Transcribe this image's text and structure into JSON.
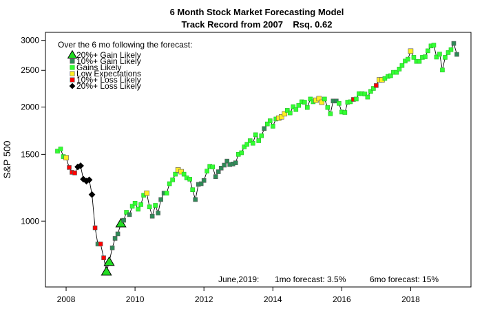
{
  "chart_data": {
    "type": "scatter",
    "title": "6 Month Stock Market Forecasting Model",
    "subtitle": "Track Record from 2007    Rsq. 0.62",
    "xlabel": "",
    "ylabel": "S&P 500",
    "y_scale": "log",
    "xlim": [
      2007.4,
      2019.75
    ],
    "ylim": [
      670,
      3150
    ],
    "x_ticks": [
      2008,
      2010,
      2012,
      2014,
      2016,
      2018
    ],
    "y_ticks": [
      1000,
      1500,
      2000,
      2500,
      3000
    ],
    "legend_title": "Over the 6 mo following the forecast:",
    "legend_position": "top-left",
    "legend": [
      {
        "key": "big-gain",
        "label": "20%+ Gain Likely",
        "color": "#22dd22",
        "shape": "triangle"
      },
      {
        "key": "gain10",
        "label": "10%+ Gain Likely",
        "color": "#2e8b57",
        "shape": "square"
      },
      {
        "key": "gain",
        "label": "Gains Likely",
        "color": "#33ff33",
        "shape": "square"
      },
      {
        "key": "low",
        "label": "Low Expectations",
        "color": "#ffee22",
        "shape": "square"
      },
      {
        "key": "loss10",
        "label": "10%+ Loss Likely",
        "color": "#ff0000",
        "shape": "square"
      },
      {
        "key": "loss20",
        "label": "20%+ Loss Likely",
        "color": "#000000",
        "shape": "diamond"
      }
    ],
    "footer": {
      "date": "June,2019:",
      "onemo": "1mo forecast: 3.5%",
      "sixmo": "6mo forecast: 15%"
    },
    "series": [
      {
        "name": "S&P 500 monthly forecasts",
        "points": [
          {
            "x": 2007.75,
            "y": 1530,
            "c": "gain"
          },
          {
            "x": 2007.84,
            "y": 1550,
            "c": "gain"
          },
          {
            "x": 2007.92,
            "y": 1480,
            "c": "gain"
          },
          {
            "x": 2008.0,
            "y": 1470,
            "c": "low"
          },
          {
            "x": 2008.09,
            "y": 1385,
            "c": "loss10"
          },
          {
            "x": 2008.17,
            "y": 1345,
            "c": "loss10"
          },
          {
            "x": 2008.25,
            "y": 1340,
            "c": "loss10"
          },
          {
            "x": 2008.34,
            "y": 1390,
            "c": "loss20"
          },
          {
            "x": 2008.42,
            "y": 1400,
            "c": "loss20"
          },
          {
            "x": 2008.5,
            "y": 1290,
            "c": "loss20"
          },
          {
            "x": 2008.59,
            "y": 1275,
            "c": "loss20"
          },
          {
            "x": 2008.67,
            "y": 1285,
            "c": "loss20"
          },
          {
            "x": 2008.75,
            "y": 1175,
            "c": "loss20"
          },
          {
            "x": 2008.84,
            "y": 960,
            "c": "loss10"
          },
          {
            "x": 2008.92,
            "y": 870,
            "c": "gain10"
          },
          {
            "x": 2009.0,
            "y": 870,
            "c": "loss10"
          },
          {
            "x": 2009.09,
            "y": 800,
            "c": "loss10"
          },
          {
            "x": 2009.17,
            "y": 735,
            "c": "big-gain"
          },
          {
            "x": 2009.25,
            "y": 780,
            "c": "big-gain"
          },
          {
            "x": 2009.34,
            "y": 850,
            "c": "gain10"
          },
          {
            "x": 2009.42,
            "y": 900,
            "c": "gain10"
          },
          {
            "x": 2009.5,
            "y": 925,
            "c": "gain10"
          },
          {
            "x": 2009.59,
            "y": 985,
            "c": "big-gain"
          },
          {
            "x": 2009.67,
            "y": 1005,
            "c": "gain10"
          },
          {
            "x": 2009.75,
            "y": 1055,
            "c": "gain"
          },
          {
            "x": 2009.84,
            "y": 1040,
            "c": "gain10"
          },
          {
            "x": 2009.92,
            "y": 1095,
            "c": "gain"
          },
          {
            "x": 2010.0,
            "y": 1115,
            "c": "gain"
          },
          {
            "x": 2010.09,
            "y": 1075,
            "c": "gain"
          },
          {
            "x": 2010.17,
            "y": 1105,
            "c": "gain"
          },
          {
            "x": 2010.25,
            "y": 1170,
            "c": "gain"
          },
          {
            "x": 2010.34,
            "y": 1185,
            "c": "low"
          },
          {
            "x": 2010.42,
            "y": 1090,
            "c": "gain"
          },
          {
            "x": 2010.5,
            "y": 1030,
            "c": "gain10"
          },
          {
            "x": 2010.59,
            "y": 1100,
            "c": "gain"
          },
          {
            "x": 2010.67,
            "y": 1050,
            "c": "gain10"
          },
          {
            "x": 2010.75,
            "y": 1140,
            "c": "gain10"
          },
          {
            "x": 2010.84,
            "y": 1185,
            "c": "gain10"
          },
          {
            "x": 2010.92,
            "y": 1185,
            "c": "gain"
          },
          {
            "x": 2011.0,
            "y": 1255,
            "c": "gain"
          },
          {
            "x": 2011.09,
            "y": 1285,
            "c": "gain"
          },
          {
            "x": 2011.17,
            "y": 1330,
            "c": "gain"
          },
          {
            "x": 2011.25,
            "y": 1365,
            "c": "low"
          },
          {
            "x": 2011.34,
            "y": 1350,
            "c": "low"
          },
          {
            "x": 2011.42,
            "y": 1330,
            "c": "gain"
          },
          {
            "x": 2011.5,
            "y": 1300,
            "c": "gain"
          },
          {
            "x": 2011.59,
            "y": 1290,
            "c": "gain"
          },
          {
            "x": 2011.67,
            "y": 1210,
            "c": "gain"
          },
          {
            "x": 2011.75,
            "y": 1140,
            "c": "gain10"
          },
          {
            "x": 2011.84,
            "y": 1250,
            "c": "gain10"
          },
          {
            "x": 2011.92,
            "y": 1255,
            "c": "gain10"
          },
          {
            "x": 2012.0,
            "y": 1280,
            "c": "gain10"
          },
          {
            "x": 2012.09,
            "y": 1355,
            "c": "gain"
          },
          {
            "x": 2012.17,
            "y": 1395,
            "c": "gain"
          },
          {
            "x": 2012.25,
            "y": 1390,
            "c": "gain"
          },
          {
            "x": 2012.34,
            "y": 1310,
            "c": "gain10"
          },
          {
            "x": 2012.42,
            "y": 1350,
            "c": "gain10"
          },
          {
            "x": 2012.5,
            "y": 1380,
            "c": "gain10"
          },
          {
            "x": 2012.59,
            "y": 1405,
            "c": "gain10"
          },
          {
            "x": 2012.67,
            "y": 1440,
            "c": "gain10"
          },
          {
            "x": 2012.75,
            "y": 1410,
            "c": "gain10"
          },
          {
            "x": 2012.84,
            "y": 1415,
            "c": "gain10"
          },
          {
            "x": 2012.92,
            "y": 1425,
            "c": "gain10"
          },
          {
            "x": 2013.0,
            "y": 1500,
            "c": "gain"
          },
          {
            "x": 2013.09,
            "y": 1515,
            "c": "gain"
          },
          {
            "x": 2013.17,
            "y": 1570,
            "c": "gain"
          },
          {
            "x": 2013.25,
            "y": 1595,
            "c": "gain"
          },
          {
            "x": 2013.34,
            "y": 1630,
            "c": "gain"
          },
          {
            "x": 2013.42,
            "y": 1605,
            "c": "gain"
          },
          {
            "x": 2013.5,
            "y": 1690,
            "c": "gain"
          },
          {
            "x": 2013.59,
            "y": 1630,
            "c": "gain"
          },
          {
            "x": 2013.67,
            "y": 1680,
            "c": "gain"
          },
          {
            "x": 2013.75,
            "y": 1755,
            "c": "gain10"
          },
          {
            "x": 2013.84,
            "y": 1805,
            "c": "gain"
          },
          {
            "x": 2013.92,
            "y": 1840,
            "c": "gain"
          },
          {
            "x": 2014.0,
            "y": 1780,
            "c": "gain"
          },
          {
            "x": 2014.09,
            "y": 1860,
            "c": "gain"
          },
          {
            "x": 2014.17,
            "y": 1870,
            "c": "low"
          },
          {
            "x": 2014.25,
            "y": 1885,
            "c": "low"
          },
          {
            "x": 2014.34,
            "y": 1920,
            "c": "low"
          },
          {
            "x": 2014.42,
            "y": 1960,
            "c": "gain"
          },
          {
            "x": 2014.5,
            "y": 1930,
            "c": "gain"
          },
          {
            "x": 2014.59,
            "y": 2005,
            "c": "gain"
          },
          {
            "x": 2014.67,
            "y": 1970,
            "c": "gain"
          },
          {
            "x": 2014.75,
            "y": 2020,
            "c": "gain"
          },
          {
            "x": 2014.84,
            "y": 2065,
            "c": "gain"
          },
          {
            "x": 2014.92,
            "y": 2060,
            "c": "gain"
          },
          {
            "x": 2015.0,
            "y": 1995,
            "c": "gain"
          },
          {
            "x": 2015.09,
            "y": 2100,
            "c": "gain"
          },
          {
            "x": 2015.17,
            "y": 2065,
            "c": "gain"
          },
          {
            "x": 2015.25,
            "y": 2085,
            "c": "low"
          },
          {
            "x": 2015.34,
            "y": 2105,
            "c": "low"
          },
          {
            "x": 2015.42,
            "y": 2060,
            "c": "low"
          },
          {
            "x": 2015.5,
            "y": 2100,
            "c": "gain"
          },
          {
            "x": 2015.59,
            "y": 1995,
            "c": "gain"
          },
          {
            "x": 2015.67,
            "y": 1920,
            "c": "gain"
          },
          {
            "x": 2015.75,
            "y": 2075,
            "c": "gain10"
          },
          {
            "x": 2015.84,
            "y": 2075,
            "c": "gain10"
          },
          {
            "x": 2015.92,
            "y": 2045,
            "c": "gain"
          },
          {
            "x": 2016.0,
            "y": 1940,
            "c": "gain"
          },
          {
            "x": 2016.09,
            "y": 1935,
            "c": "gain"
          },
          {
            "x": 2016.17,
            "y": 2060,
            "c": "gain"
          },
          {
            "x": 2016.25,
            "y": 2065,
            "c": "gain"
          },
          {
            "x": 2016.34,
            "y": 2095,
            "c": "loss10"
          },
          {
            "x": 2016.42,
            "y": 2100,
            "c": "gain"
          },
          {
            "x": 2016.5,
            "y": 2170,
            "c": "gain"
          },
          {
            "x": 2016.59,
            "y": 2170,
            "c": "gain"
          },
          {
            "x": 2016.67,
            "y": 2165,
            "c": "gain"
          },
          {
            "x": 2016.75,
            "y": 2125,
            "c": "gain"
          },
          {
            "x": 2016.84,
            "y": 2200,
            "c": "gain"
          },
          {
            "x": 2016.92,
            "y": 2240,
            "c": "gain"
          },
          {
            "x": 2017.0,
            "y": 2280,
            "c": "loss10"
          },
          {
            "x": 2017.09,
            "y": 2360,
            "c": "low"
          },
          {
            "x": 2017.17,
            "y": 2360,
            "c": "low"
          },
          {
            "x": 2017.25,
            "y": 2380,
            "c": "gain"
          },
          {
            "x": 2017.34,
            "y": 2410,
            "c": "gain"
          },
          {
            "x": 2017.42,
            "y": 2420,
            "c": "gain"
          },
          {
            "x": 2017.5,
            "y": 2470,
            "c": "gain"
          },
          {
            "x": 2017.59,
            "y": 2470,
            "c": "gain"
          },
          {
            "x": 2017.67,
            "y": 2520,
            "c": "gain"
          },
          {
            "x": 2017.75,
            "y": 2575,
            "c": "gain"
          },
          {
            "x": 2017.84,
            "y": 2645,
            "c": "gain"
          },
          {
            "x": 2017.92,
            "y": 2675,
            "c": "gain"
          },
          {
            "x": 2018.0,
            "y": 2810,
            "c": "low"
          },
          {
            "x": 2018.09,
            "y": 2705,
            "c": "gain"
          },
          {
            "x": 2018.17,
            "y": 2640,
            "c": "gain"
          },
          {
            "x": 2018.25,
            "y": 2640,
            "c": "gain"
          },
          {
            "x": 2018.34,
            "y": 2705,
            "c": "gain"
          },
          {
            "x": 2018.42,
            "y": 2715,
            "c": "gain"
          },
          {
            "x": 2018.5,
            "y": 2815,
            "c": "gain"
          },
          {
            "x": 2018.59,
            "y": 2900,
            "c": "gain"
          },
          {
            "x": 2018.67,
            "y": 2915,
            "c": "gain"
          },
          {
            "x": 2018.75,
            "y": 2710,
            "c": "gain"
          },
          {
            "x": 2018.84,
            "y": 2760,
            "c": "gain"
          },
          {
            "x": 2018.92,
            "y": 2505,
            "c": "gain"
          },
          {
            "x": 2019.0,
            "y": 2705,
            "c": "gain"
          },
          {
            "x": 2019.09,
            "y": 2785,
            "c": "gain"
          },
          {
            "x": 2019.17,
            "y": 2835,
            "c": "gain"
          },
          {
            "x": 2019.25,
            "y": 2945,
            "c": "gain10"
          },
          {
            "x": 2019.34,
            "y": 2755,
            "c": "gain10"
          }
        ]
      }
    ]
  }
}
